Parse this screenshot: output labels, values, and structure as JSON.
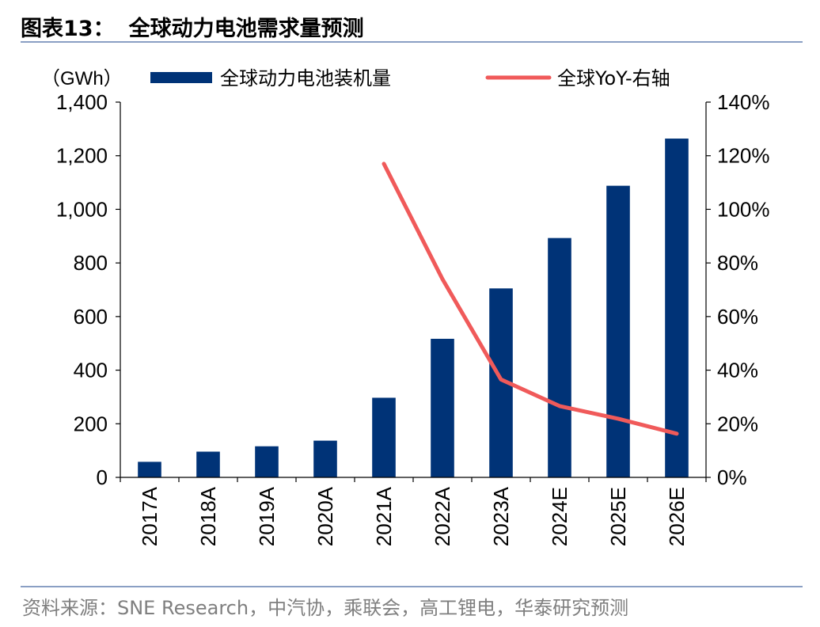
{
  "header": {
    "figure_number": "图表13：",
    "title": "全球动力电池需求量预测"
  },
  "footer": {
    "source": "资料来源：SNE Research，中汽协，乘联会，高工锂电，华泰研究预测"
  },
  "chart_data": {
    "type": "bar",
    "categories": [
      "2017A",
      "2018A",
      "2019A",
      "2020A",
      "2021A",
      "2022A",
      "2023A",
      "2024E",
      "2025E",
      "2026E"
    ],
    "unit_label": "（GWh）",
    "series": [
      {
        "name": "全球动力电池装机量",
        "type": "bar",
        "axis": "left",
        "color": "#003377",
        "values": [
          58,
          96,
          116,
          137,
          297,
          517,
          705,
          893,
          1088,
          1264
        ]
      },
      {
        "name": "全球YoY-右轴",
        "type": "line",
        "axis": "right",
        "color": "#f05a5a",
        "values": [
          null,
          null,
          null,
          null,
          1.17,
          0.74,
          0.365,
          0.266,
          0.219,
          0.163
        ]
      }
    ],
    "left_axis": {
      "min": 0,
      "max": 1400,
      "step": 200,
      "ticks": [
        "0",
        "200",
        "400",
        "600",
        "800",
        "1,000",
        "1,200",
        "1,400"
      ]
    },
    "right_axis": {
      "min": 0,
      "max": 1.4,
      "step": 0.2,
      "ticks": [
        "0%",
        "20%",
        "40%",
        "60%",
        "80%",
        "100%",
        "120%",
        "140%"
      ]
    },
    "grid": false,
    "legend_position": "top"
  }
}
